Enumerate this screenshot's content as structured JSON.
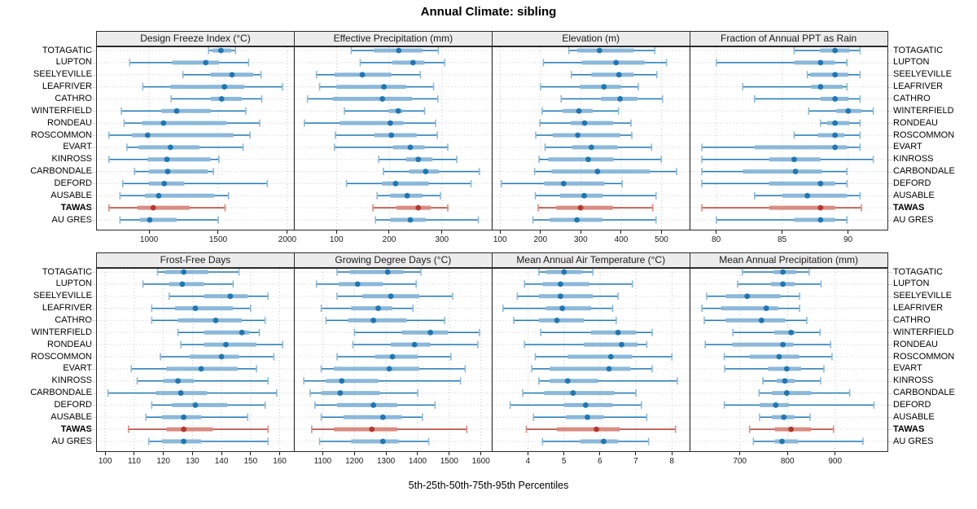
{
  "title": "Annual Climate: sibling",
  "caption": "5th-25th-50th-75th-95th Percentiles",
  "colors": {
    "normal": "#1f77b4",
    "normal_light": "#8bb8d9",
    "highlight": "#b5372e",
    "highlight_light": "#d98c82",
    "grid": "#c6c6c6",
    "strip_bg": "#ececec",
    "border": "#2b2b2b"
  },
  "chart_data": {
    "type": "dotplot-intervals",
    "percentiles": [
      5,
      25,
      50,
      75,
      95
    ],
    "stations": [
      "TOTAGATIC",
      "LUPTON",
      "SEELYEVILLE",
      "LEAFRIVER",
      "CATHRO",
      "WINTERFIELD",
      "RONDEAU",
      "ROSCOMMON",
      "EVART",
      "KINROSS",
      "CARBONDALE",
      "DEFORD",
      "AUSABLE",
      "TAWAS",
      "AU GRES"
    ],
    "highlight_station": "TAWAS",
    "layout": {
      "rows": 2,
      "cols": 4
    },
    "panels": [
      {
        "row": 0,
        "col": 0,
        "title": "Design Freeze Index (°C)",
        "ticks": [
          1000,
          1500,
          2000
        ],
        "xlim": [
          620,
          2050
        ],
        "values": [
          [
            1430,
            1460,
            1520,
            1595,
            1625
          ],
          [
            860,
            1170,
            1410,
            1505,
            1720
          ],
          [
            1245,
            1445,
            1600,
            1755,
            1810
          ],
          [
            955,
            1155,
            1545,
            1690,
            1965
          ],
          [
            1160,
            1445,
            1525,
            1670,
            1815
          ],
          [
            800,
            1090,
            1200,
            1445,
            1700
          ],
          [
            820,
            950,
            1105,
            1560,
            1800
          ],
          [
            710,
            875,
            990,
            1610,
            1730
          ],
          [
            840,
            925,
            1155,
            1365,
            1680
          ],
          [
            710,
            990,
            1130,
            1445,
            1505
          ],
          [
            895,
            1000,
            1135,
            1425,
            1465
          ],
          [
            810,
            1000,
            1110,
            1255,
            1855
          ],
          [
            790,
            970,
            1070,
            1470,
            1575
          ],
          [
            710,
            915,
            1030,
            1295,
            1550
          ],
          [
            790,
            935,
            1005,
            1200,
            1500
          ]
        ]
      },
      {
        "row": 0,
        "col": 1,
        "title": "Effective Precipitation (mm)",
        "ticks": [
          100,
          200,
          300
        ],
        "xlim": [
          20,
          395
        ],
        "values": [
          [
            128,
            171,
            218,
            263,
            293
          ],
          [
            145,
            206,
            245,
            267,
            305
          ],
          [
            62,
            96,
            149,
            204,
            259
          ],
          [
            68,
            100,
            190,
            232,
            284
          ],
          [
            45,
            93,
            187,
            243,
            292
          ],
          [
            115,
            199,
            217,
            225,
            267
          ],
          [
            39,
            106,
            202,
            227,
            288
          ],
          [
            98,
            172,
            204,
            252,
            291
          ],
          [
            96,
            207,
            240,
            267,
            311
          ],
          [
            180,
            232,
            255,
            282,
            328
          ],
          [
            189,
            238,
            269,
            294,
            371
          ],
          [
            119,
            186,
            212,
            275,
            355
          ],
          [
            177,
            202,
            234,
            263,
            297
          ],
          [
            169,
            214,
            255,
            279,
            311
          ],
          [
            174,
            202,
            240,
            269,
            369
          ]
        ]
      },
      {
        "row": 0,
        "col": 2,
        "title": "Elevation (m)",
        "ticks": [
          100,
          200,
          300,
          400,
          500
        ],
        "xlim": [
          80,
          570
        ],
        "values": [
          [
            270,
            291,
            346,
            431,
            483
          ],
          [
            207,
            303,
            387,
            458,
            512
          ],
          [
            276,
            326,
            394,
            431,
            488
          ],
          [
            200,
            297,
            357,
            399,
            442
          ],
          [
            251,
            350,
            397,
            440,
            502
          ],
          [
            204,
            255,
            295,
            329,
            393
          ],
          [
            198,
            274,
            309,
            380,
            424
          ],
          [
            188,
            230,
            292,
            397,
            426
          ],
          [
            211,
            279,
            326,
            391,
            475
          ],
          [
            196,
            219,
            318,
            381,
            499
          ],
          [
            185,
            227,
            341,
            471,
            537
          ],
          [
            103,
            209,
            257,
            358,
            402
          ],
          [
            187,
            248,
            308,
            354,
            486
          ],
          [
            194,
            239,
            299,
            379,
            478
          ],
          [
            181,
            223,
            290,
            353,
            486
          ]
        ]
      },
      {
        "row": 0,
        "col": 3,
        "title": "Fraction of Annual PPT as Rain",
        "ticks": [
          80,
          85,
          90
        ],
        "xlim": [
          78,
          93
        ],
        "values": [
          [
            85.9,
            87.9,
            89.0,
            90.1,
            90.9
          ],
          [
            80.0,
            85.9,
            87.9,
            89.0,
            89.9
          ],
          [
            86.9,
            87.1,
            89.0,
            90.0,
            90.9
          ],
          [
            82.0,
            87.2,
            87.9,
            89.6,
            89.9
          ],
          [
            82.9,
            87.9,
            89.0,
            90.0,
            90.9
          ],
          [
            87.0,
            89.1,
            90.0,
            91.0,
            91.9
          ],
          [
            87.9,
            88.4,
            89.0,
            90.1,
            90.9
          ],
          [
            85.9,
            87.7,
            89.0,
            89.7,
            90.9
          ],
          [
            78.9,
            82.9,
            89.0,
            89.9,
            90.9
          ],
          [
            78.9,
            84.0,
            85.9,
            87.9,
            91.9
          ],
          [
            78.9,
            82.0,
            86.0,
            88.0,
            89.9
          ],
          [
            78.9,
            84.0,
            87.9,
            89.0,
            89.9
          ],
          [
            82.9,
            85.0,
            86.9,
            89.9,
            90.9
          ],
          [
            78.9,
            84.0,
            87.9,
            89.0,
            91.0
          ],
          [
            80.0,
            85.9,
            87.9,
            89.0,
            89.9
          ]
        ]
      },
      {
        "row": 1,
        "col": 0,
        "title": "Frost-Free Days",
        "ticks": [
          100,
          110,
          120,
          130,
          140,
          150,
          160
        ],
        "xlim": [
          97,
          165
        ],
        "values": [
          [
            118,
            120.5,
            127,
            135.5,
            146
          ],
          [
            113,
            122,
            126.5,
            134,
            144
          ],
          [
            122,
            134,
            143,
            149,
            156
          ],
          [
            116,
            124,
            131,
            144,
            150
          ],
          [
            116,
            125,
            138,
            147,
            155
          ],
          [
            125,
            134,
            147,
            149.5,
            153
          ],
          [
            126,
            134,
            141.5,
            152,
            161
          ],
          [
            119,
            129,
            140,
            146,
            158
          ],
          [
            109,
            121,
            133,
            145.5,
            152
          ],
          [
            111,
            120,
            125,
            130.5,
            156
          ],
          [
            101,
            117.5,
            126,
            135,
            159
          ],
          [
            116,
            123,
            131,
            142,
            155
          ],
          [
            114,
            119.5,
            127,
            133,
            149
          ],
          [
            108,
            121,
            127,
            137,
            156
          ],
          [
            115,
            119.5,
            127,
            133,
            156
          ]
        ]
      },
      {
        "row": 1,
        "col": 1,
        "title": "Growing Degree Days (°C)",
        "ticks": [
          1100,
          1200,
          1300,
          1400,
          1500,
          1600
        ],
        "xlim": [
          1010,
          1635
        ],
        "values": [
          [
            1145,
            1185,
            1305,
            1355,
            1410
          ],
          [
            1080,
            1150,
            1210,
            1290,
            1395
          ],
          [
            1145,
            1225,
            1315,
            1405,
            1510
          ],
          [
            1095,
            1190,
            1275,
            1320,
            1385
          ],
          [
            1110,
            1180,
            1260,
            1365,
            1485
          ],
          [
            1200,
            1350,
            1440,
            1495,
            1595
          ],
          [
            1195,
            1315,
            1390,
            1440,
            1590
          ],
          [
            1145,
            1265,
            1320,
            1400,
            1505
          ],
          [
            1095,
            1135,
            1310,
            1405,
            1550
          ],
          [
            1040,
            1110,
            1160,
            1275,
            1535
          ],
          [
            1060,
            1095,
            1155,
            1280,
            1400
          ],
          [
            1075,
            1145,
            1260,
            1335,
            1455
          ],
          [
            1095,
            1165,
            1290,
            1350,
            1415
          ],
          [
            1065,
            1135,
            1255,
            1335,
            1555
          ],
          [
            1090,
            1190,
            1290,
            1340,
            1435
          ]
        ]
      },
      {
        "row": 1,
        "col": 2,
        "title": "Mean Annual Air Temperature (°C)",
        "ticks": [
          4,
          5,
          6,
          7,
          8
        ],
        "xlim": [
          3.0,
          8.5
        ],
        "values": [
          [
            4.3,
            4.5,
            5.0,
            5.5,
            5.8
          ],
          [
            3.9,
            4.4,
            4.9,
            5.7,
            6.9
          ],
          [
            3.7,
            4.3,
            4.9,
            5.8,
            6.5
          ],
          [
            3.3,
            4.5,
            4.95,
            5.75,
            6.35
          ],
          [
            3.6,
            4.3,
            4.8,
            5.55,
            6.45
          ],
          [
            4.35,
            5.75,
            6.5,
            7.0,
            7.45
          ],
          [
            3.9,
            5.55,
            6.6,
            7.05,
            7.3
          ],
          [
            4.2,
            5.1,
            6.3,
            6.9,
            8.0
          ],
          [
            4.1,
            4.6,
            6.25,
            6.85,
            7.45
          ],
          [
            4.3,
            4.6,
            5.1,
            5.95,
            8.15
          ],
          [
            3.85,
            4.45,
            5.25,
            6.4,
            7.0
          ],
          [
            3.5,
            5.0,
            5.6,
            6.35,
            7.15
          ],
          [
            4.15,
            5.05,
            5.65,
            6.1,
            7.3
          ],
          [
            3.95,
            4.8,
            5.9,
            6.55,
            8.1
          ],
          [
            4.4,
            5.45,
            6.1,
            6.5,
            7.35
          ]
        ]
      },
      {
        "row": 1,
        "col": 3,
        "title": "Mean Annual Precipitation (mm)",
        "ticks": [
          700,
          800,
          900
        ],
        "xlim": [
          595,
          1010
        ],
        "values": [
          [
            705,
            770,
            790,
            818,
            845
          ],
          [
            695,
            765,
            790,
            815,
            870
          ],
          [
            630,
            670,
            715,
            785,
            825
          ],
          [
            620,
            660,
            755,
            780,
            825
          ],
          [
            625,
            670,
            745,
            795,
            840
          ],
          [
            685,
            772,
            807,
            815,
            868
          ],
          [
            627,
            684,
            790,
            812,
            890
          ],
          [
            667,
            720,
            782,
            824,
            893
          ],
          [
            668,
            759,
            798,
            828,
            876
          ],
          [
            748,
            777,
            794,
            815,
            869
          ],
          [
            740,
            767,
            798,
            849,
            930
          ],
          [
            667,
            741,
            775,
            802,
            981
          ],
          [
            741,
            767,
            792,
            814,
            847
          ],
          [
            720,
            773,
            807,
            849,
            896
          ],
          [
            728,
            773,
            788,
            822,
            958
          ]
        ]
      }
    ]
  }
}
